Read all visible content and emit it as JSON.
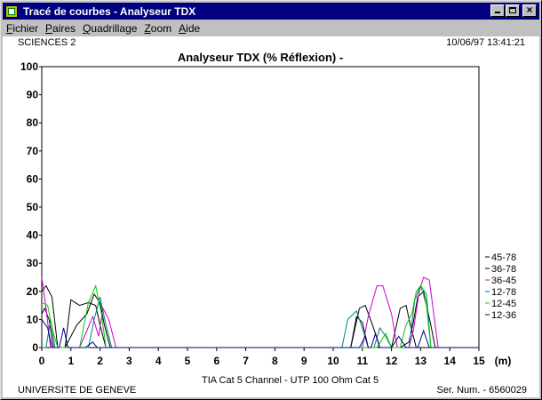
{
  "window": {
    "title": "Tracé de courbes - Analyseur TDX",
    "buttons": [
      "minimize",
      "maximize",
      "close"
    ]
  },
  "menu": [
    {
      "first": "F",
      "rest": "ichier"
    },
    {
      "first": "P",
      "rest": "aires"
    },
    {
      "first": "Q",
      "rest": "uadrillage"
    },
    {
      "first": "Z",
      "rest": "oom"
    },
    {
      "first": "A",
      "rest": "ide"
    }
  ],
  "header": {
    "left": "SCIENCES 2",
    "right": "10/06/97  13:41:21"
  },
  "footer": {
    "left": "UNIVERSITE DE GENEVE",
    "center": "TIA Cat 5 Channel - UTP 100 Ohm Cat 5",
    "right": "Ser. Num. - 6560029"
  },
  "chart_data": {
    "type": "line",
    "title": "Analyseur TDX (% Réflexion) -",
    "xlabel": "(m)",
    "ylabel": "",
    "xlim": [
      0,
      15
    ],
    "ylim": [
      0,
      100
    ],
    "xticks": [
      "0",
      "1",
      "2",
      "3",
      "4",
      "5",
      "6",
      "7",
      "8",
      "9",
      "10",
      "11",
      "12",
      "13",
      "14",
      "15"
    ],
    "yticks": [
      "0",
      "10",
      "20",
      "30",
      "40",
      "50",
      "60",
      "70",
      "80",
      "90",
      "100"
    ],
    "grid": false,
    "legend_position": "right",
    "series": [
      {
        "name": "45-78",
        "color": "#000000",
        "points": [
          [
            0,
            20
          ],
          [
            0.15,
            22
          ],
          [
            0.35,
            18
          ],
          [
            0.55,
            0
          ],
          [
            0.8,
            0
          ],
          [
            1.0,
            17
          ],
          [
            1.3,
            15
          ],
          [
            1.6,
            16
          ],
          [
            1.85,
            15
          ],
          [
            2.0,
            8
          ],
          [
            2.2,
            0
          ],
          [
            2.6,
            0
          ],
          [
            10.6,
            0
          ],
          [
            10.9,
            14
          ],
          [
            11.1,
            15
          ],
          [
            11.35,
            8
          ],
          [
            11.6,
            0
          ],
          [
            12.0,
            0
          ],
          [
            12.3,
            14
          ],
          [
            12.5,
            15
          ],
          [
            12.65,
            8
          ],
          [
            12.85,
            0
          ],
          [
            15,
            0
          ]
        ]
      },
      {
        "name": "36-78",
        "color": "#000000",
        "points": [
          [
            0,
            12
          ],
          [
            0.1,
            14
          ],
          [
            0.25,
            10
          ],
          [
            0.4,
            0
          ],
          [
            0.8,
            0
          ],
          [
            1.2,
            8
          ],
          [
            1.55,
            12
          ],
          [
            1.8,
            19
          ],
          [
            2.0,
            16
          ],
          [
            2.15,
            8
          ],
          [
            2.35,
            0
          ],
          [
            2.6,
            0
          ],
          [
            10.6,
            0
          ],
          [
            10.8,
            11
          ],
          [
            11.0,
            9
          ],
          [
            11.2,
            0
          ],
          [
            12.3,
            0
          ],
          [
            12.6,
            2
          ],
          [
            12.75,
            9
          ],
          [
            12.9,
            18
          ],
          [
            13.1,
            20
          ],
          [
            13.35,
            8
          ],
          [
            13.5,
            0
          ],
          [
            15,
            0
          ]
        ]
      },
      {
        "name": "36-45",
        "color": "#cc00cc",
        "points": [
          [
            0,
            25
          ],
          [
            0.15,
            14
          ],
          [
            0.3,
            0
          ],
          [
            1.3,
            0
          ],
          [
            1.55,
            6
          ],
          [
            1.75,
            11
          ],
          [
            1.95,
            4
          ],
          [
            2.1,
            14
          ],
          [
            2.3,
            10
          ],
          [
            2.55,
            0
          ],
          [
            11.0,
            0
          ],
          [
            11.2,
            11
          ],
          [
            11.5,
            22
          ],
          [
            11.7,
            22
          ],
          [
            12.0,
            12
          ],
          [
            12.2,
            0
          ],
          [
            12.6,
            0
          ],
          [
            12.75,
            6
          ],
          [
            12.95,
            20
          ],
          [
            13.1,
            25
          ],
          [
            13.3,
            24
          ],
          [
            13.5,
            8
          ],
          [
            13.6,
            0
          ],
          [
            15,
            0
          ]
        ]
      },
      {
        "name": "12-78",
        "color": "#008080",
        "points": [
          [
            0,
            0
          ],
          [
            0.15,
            0
          ],
          [
            0.3,
            10
          ],
          [
            0.45,
            0
          ],
          [
            1.6,
            0
          ],
          [
            1.8,
            10
          ],
          [
            2.0,
            18
          ],
          [
            2.2,
            8
          ],
          [
            2.4,
            0
          ],
          [
            10.3,
            0
          ],
          [
            10.5,
            10
          ],
          [
            10.8,
            13
          ],
          [
            11.0,
            7
          ],
          [
            11.2,
            0
          ],
          [
            11.4,
            0
          ],
          [
            11.6,
            7
          ],
          [
            11.8,
            4
          ],
          [
            12.0,
            0
          ],
          [
            12.6,
            0
          ],
          [
            12.8,
            17
          ],
          [
            13.0,
            22
          ],
          [
            13.2,
            19
          ],
          [
            13.35,
            0
          ],
          [
            15,
            0
          ]
        ]
      },
      {
        "name": "12-45",
        "color": "#00cc00",
        "points": [
          [
            0,
            16
          ],
          [
            0.2,
            15
          ],
          [
            0.4,
            5
          ],
          [
            0.55,
            0
          ],
          [
            1.3,
            0
          ],
          [
            1.6,
            16
          ],
          [
            1.85,
            22
          ],
          [
            2.05,
            12
          ],
          [
            2.2,
            0
          ],
          [
            11.5,
            0
          ],
          [
            11.8,
            5
          ],
          [
            12.0,
            0
          ],
          [
            12.3,
            0
          ],
          [
            12.5,
            8
          ],
          [
            12.7,
            12
          ],
          [
            12.85,
            20
          ],
          [
            13.0,
            22
          ],
          [
            13.2,
            15
          ],
          [
            13.35,
            0
          ],
          [
            15,
            0
          ]
        ]
      },
      {
        "name": "12-36",
        "color": "#000080",
        "points": [
          [
            0,
            10
          ],
          [
            0.2,
            7
          ],
          [
            0.35,
            0
          ],
          [
            0.6,
            0
          ],
          [
            0.75,
            7
          ],
          [
            0.9,
            0
          ],
          [
            1.5,
            0
          ],
          [
            1.75,
            2
          ],
          [
            1.9,
            0
          ],
          [
            10.9,
            0
          ],
          [
            11.1,
            4
          ],
          [
            11.2,
            0
          ],
          [
            11.3,
            0
          ],
          [
            11.45,
            5
          ],
          [
            11.6,
            0
          ],
          [
            12.0,
            0
          ],
          [
            12.25,
            4
          ],
          [
            12.5,
            0
          ],
          [
            12.9,
            0
          ],
          [
            13.1,
            6
          ],
          [
            13.3,
            0
          ],
          [
            15,
            0
          ]
        ]
      }
    ]
  }
}
